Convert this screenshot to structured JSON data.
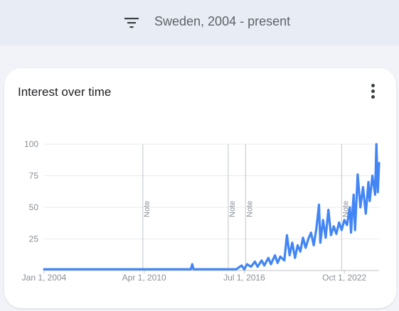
{
  "filter": {
    "icon": "filter-icon",
    "text": "Sweden, 2004 - present"
  },
  "card": {
    "title": "Interest over time",
    "menu_icon": "more-vert-icon"
  },
  "colors": {
    "line": "#4285f4",
    "grid": "#e8eaed",
    "axis_text": "#8a8f96",
    "note_line": "#cfd2d6"
  },
  "chart_data": {
    "type": "line",
    "title": "",
    "xlabel": "",
    "ylabel": "",
    "ylim": [
      0,
      100
    ],
    "yticks": [
      25,
      50,
      75,
      100
    ],
    "xticks": [
      {
        "date": "2004-01-01",
        "label": "Jan 1, 2004"
      },
      {
        "date": "2010-04-01",
        "label": "Apr 1, 2010"
      },
      {
        "date": "2016-07-01",
        "label": "Jul 1, 2016"
      },
      {
        "date": "2022-10-01",
        "label": "Oct 1, 2022"
      }
    ],
    "x_range": [
      "2004-01-01",
      "2024-12-01"
    ],
    "notes": [
      {
        "date": "2010-03-01",
        "label": "Note"
      },
      {
        "date": "2015-07-01",
        "label": "Note"
      },
      {
        "date": "2016-08-01",
        "label": "Note"
      },
      {
        "date": "2022-08-01",
        "label": "Note"
      }
    ],
    "series": [
      {
        "points": [
          [
            "2004-01-01",
            1
          ],
          [
            "2013-01-01",
            1
          ],
          [
            "2013-03-01",
            1
          ],
          [
            "2013-04-01",
            5
          ],
          [
            "2013-05-01",
            1
          ],
          [
            "2016-01-01",
            1
          ],
          [
            "2016-05-01",
            4
          ],
          [
            "2016-07-01",
            1
          ],
          [
            "2016-09-01",
            5
          ],
          [
            "2016-12-01",
            3
          ],
          [
            "2017-03-01",
            7
          ],
          [
            "2017-05-01",
            3
          ],
          [
            "2017-08-01",
            8
          ],
          [
            "2017-10-01",
            4
          ],
          [
            "2018-01-01",
            10
          ],
          [
            "2018-03-01",
            5
          ],
          [
            "2018-06-01",
            12
          ],
          [
            "2018-08-01",
            6
          ],
          [
            "2018-10-01",
            11
          ],
          [
            "2019-01-01",
            8
          ],
          [
            "2019-03-01",
            28
          ],
          [
            "2019-05-01",
            12
          ],
          [
            "2019-07-01",
            22
          ],
          [
            "2019-09-01",
            10
          ],
          [
            "2019-11-01",
            20
          ],
          [
            "2020-01-01",
            15
          ],
          [
            "2020-03-01",
            26
          ],
          [
            "2020-05-01",
            18
          ],
          [
            "2020-07-01",
            25
          ],
          [
            "2020-09-01",
            30
          ],
          [
            "2020-11-01",
            20
          ],
          [
            "2021-01-01",
            33
          ],
          [
            "2021-03-01",
            52
          ],
          [
            "2021-04-01",
            22
          ],
          [
            "2021-06-01",
            40
          ],
          [
            "2021-08-01",
            26
          ],
          [
            "2021-10-01",
            48
          ],
          [
            "2021-12-01",
            28
          ],
          [
            "2022-02-01",
            35
          ],
          [
            "2022-04-01",
            29
          ],
          [
            "2022-06-01",
            38
          ],
          [
            "2022-08-01",
            32
          ],
          [
            "2022-10-01",
            40
          ],
          [
            "2022-12-01",
            36
          ],
          [
            "2023-02-01",
            50
          ],
          [
            "2023-03-01",
            30
          ],
          [
            "2023-05-01",
            60
          ],
          [
            "2023-06-01",
            32
          ],
          [
            "2023-08-01",
            76
          ],
          [
            "2023-10-01",
            50
          ],
          [
            "2023-12-01",
            66
          ],
          [
            "2024-02-01",
            45
          ],
          [
            "2024-04-01",
            70
          ],
          [
            "2024-05-01",
            55
          ],
          [
            "2024-07-01",
            75
          ],
          [
            "2024-09-01",
            60
          ],
          [
            "2024-10-01",
            100
          ],
          [
            "2024-11-01",
            62
          ],
          [
            "2024-12-01",
            85
          ]
        ]
      }
    ]
  }
}
